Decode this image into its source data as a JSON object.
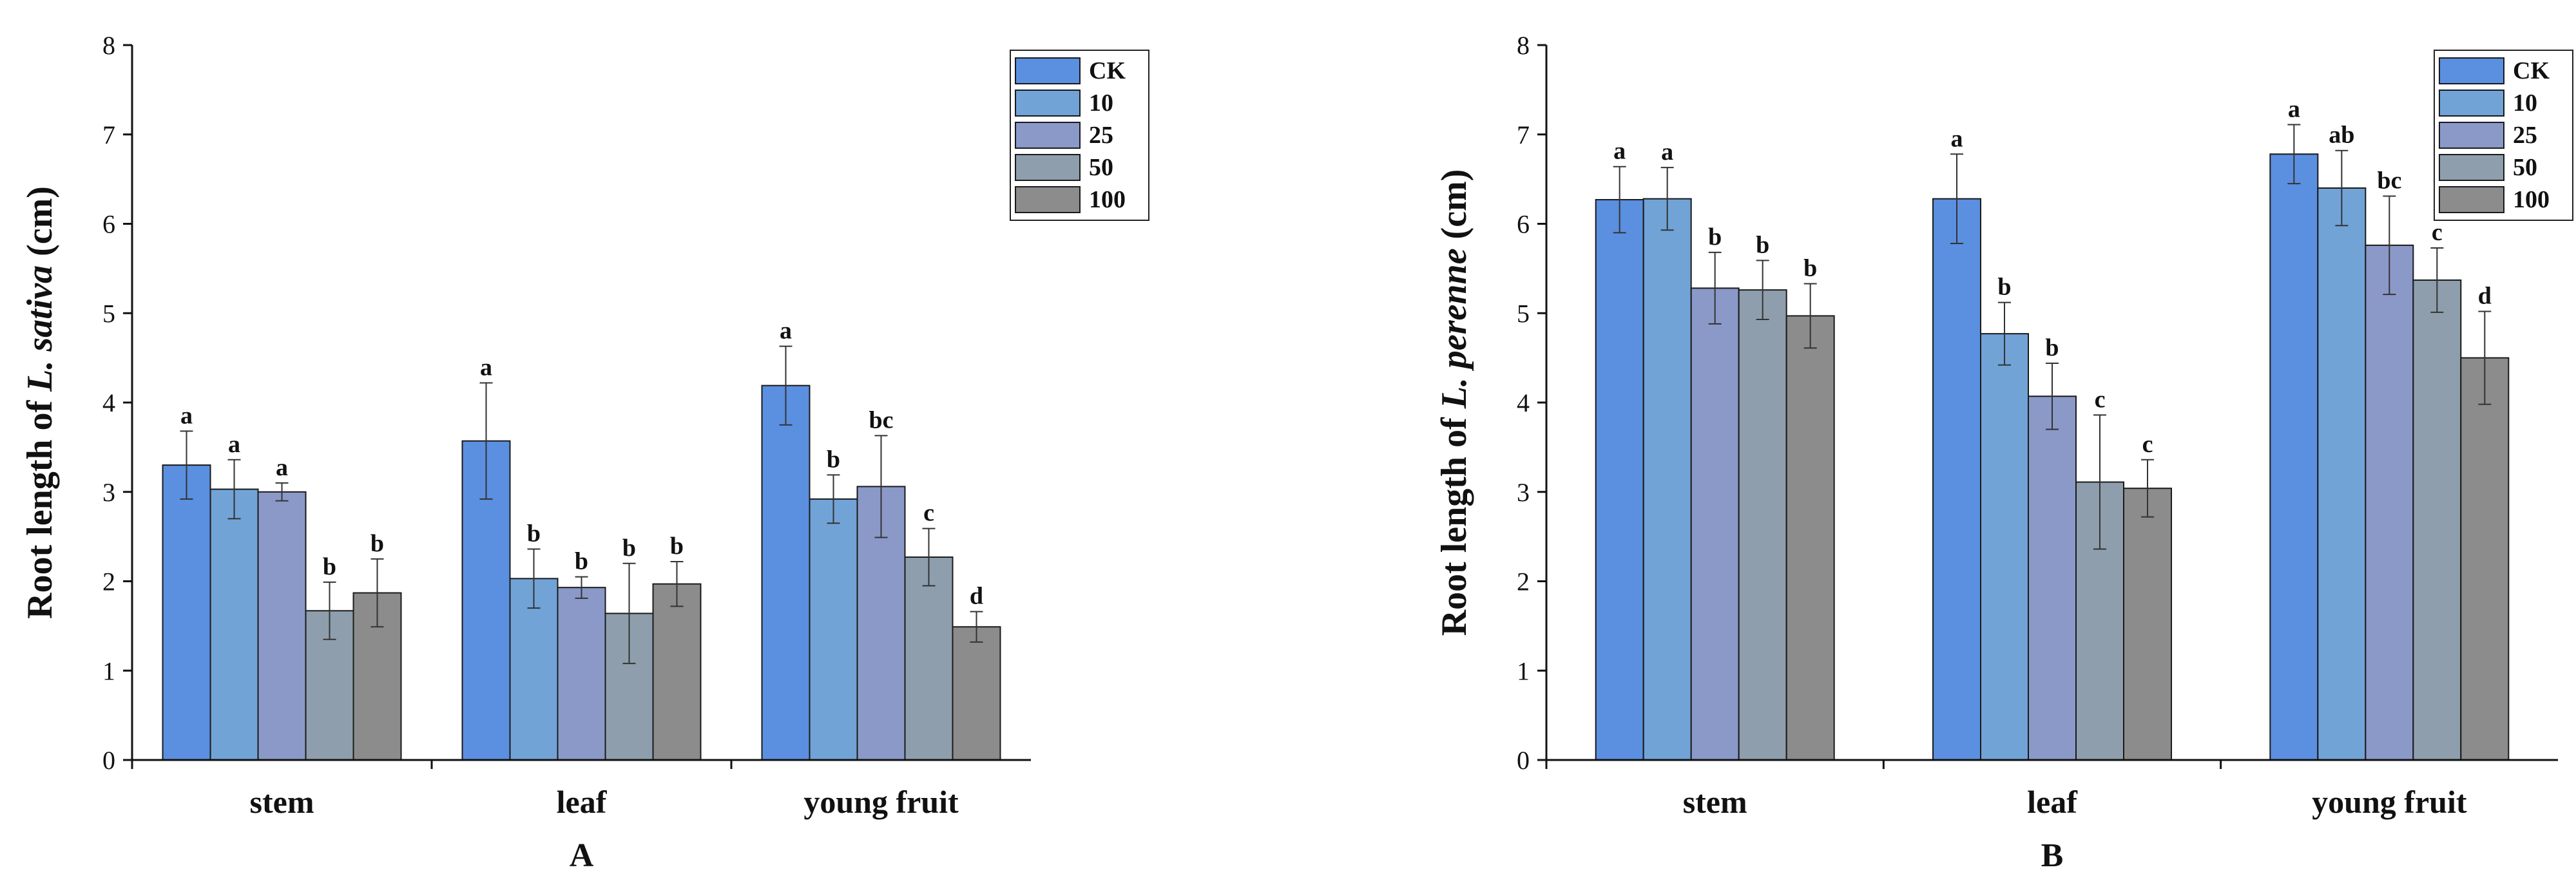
{
  "chart_data": [
    {
      "type": "bar",
      "panel": "A",
      "ylabel_prefix": "Root length of ",
      "ylabel_species": "L. sativa",
      "ylabel_suffix": " (cm)",
      "ylim": [
        0,
        8
      ],
      "yticks": [
        "0",
        "1",
        "2",
        "3",
        "4",
        "5",
        "6",
        "7",
        "8"
      ],
      "categories": [
        "stem",
        "leaf",
        "young fruit"
      ],
      "series": [
        {
          "name": "CK",
          "color": "#5b8fe0",
          "values": [
            3.3,
            3.57,
            4.19
          ],
          "errors": [
            0.38,
            0.65,
            0.44
          ],
          "letters": [
            "a",
            "a",
            "a"
          ]
        },
        {
          "name": "10",
          "color": "#71a3d6",
          "values": [
            3.03,
            2.03,
            2.92
          ],
          "errors": [
            0.33,
            0.33,
            0.27
          ],
          "letters": [
            "a",
            "b",
            "b"
          ]
        },
        {
          "name": "25",
          "color": "#8b99c9",
          "values": [
            3.0,
            1.93,
            3.06
          ],
          "errors": [
            0.1,
            0.12,
            0.57
          ],
          "letters": [
            "a",
            "b",
            "bc"
          ]
        },
        {
          "name": "50",
          "color": "#8e9eac",
          "values": [
            1.67,
            1.64,
            2.27
          ],
          "errors": [
            0.32,
            0.56,
            0.32
          ],
          "letters": [
            "b",
            "b",
            "c"
          ]
        },
        {
          "name": "100",
          "color": "#8c8c8c",
          "values": [
            1.87,
            1.97,
            1.49
          ],
          "errors": [
            0.38,
            0.25,
            0.17
          ],
          "letters": [
            "b",
            "b",
            "d"
          ]
        }
      ]
    },
    {
      "type": "bar",
      "panel": "B",
      "ylabel_prefix": "Root length of ",
      "ylabel_species": "L. perenne",
      "ylabel_suffix": " (cm)",
      "ylim": [
        0,
        8
      ],
      "yticks": [
        "0",
        "1",
        "2",
        "3",
        "4",
        "5",
        "6",
        "7",
        "8"
      ],
      "categories": [
        "stem",
        "leaf",
        "young fruit"
      ],
      "series": [
        {
          "name": "CK",
          "color": "#5b8fe0",
          "values": [
            6.27,
            6.28,
            6.78
          ],
          "errors": [
            0.37,
            0.5,
            0.33
          ],
          "letters": [
            "a",
            "a",
            "a"
          ]
        },
        {
          "name": "10",
          "color": "#71a3d6",
          "values": [
            6.28,
            4.77,
            6.4
          ],
          "errors": [
            0.35,
            0.35,
            0.42
          ],
          "letters": [
            "a",
            "b",
            "ab"
          ]
        },
        {
          "name": "25",
          "color": "#8b99c9",
          "values": [
            5.28,
            4.07,
            5.76
          ],
          "errors": [
            0.4,
            0.37,
            0.55
          ],
          "letters": [
            "b",
            "b",
            "bc"
          ]
        },
        {
          "name": "50",
          "color": "#8e9eac",
          "values": [
            5.26,
            3.11,
            5.37
          ],
          "errors": [
            0.33,
            0.75,
            0.36
          ],
          "letters": [
            "b",
            "c",
            "c"
          ]
        },
        {
          "name": "100",
          "color": "#8c8c8c",
          "values": [
            4.97,
            3.04,
            4.5
          ],
          "errors": [
            0.36,
            0.32,
            0.52
          ],
          "letters": [
            "b",
            "c",
            "d"
          ]
        }
      ]
    }
  ]
}
